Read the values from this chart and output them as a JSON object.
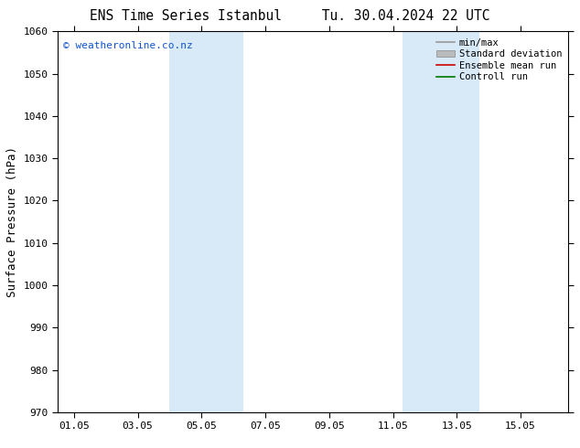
{
  "title": "ENS Time Series Istanbul     Tu. 30.04.2024 22 UTC",
  "ylabel": "Surface Pressure (hPa)",
  "ylim": [
    970,
    1060
  ],
  "yticks": [
    970,
    980,
    990,
    1000,
    1010,
    1020,
    1030,
    1040,
    1050,
    1060
  ],
  "xtick_labels": [
    "01.05",
    "03.05",
    "05.05",
    "07.05",
    "09.05",
    "11.05",
    "13.05",
    "15.05"
  ],
  "xtick_positions": [
    0,
    2,
    4,
    6,
    8,
    10,
    12,
    14
  ],
  "xlim": [
    -0.5,
    15.5
  ],
  "shaded_bands": [
    {
      "xstart": 3.0,
      "xend": 5.3
    },
    {
      "xstart": 10.3,
      "xend": 12.7
    }
  ],
  "shade_color": "#d8eaf8",
  "watermark": "© weatheronline.co.nz",
  "watermark_color": "#1155cc",
  "legend_items": [
    {
      "label": "min/max",
      "color": "#999999",
      "type": "line"
    },
    {
      "label": "Standard deviation",
      "color": "#bbbbbb",
      "type": "fill"
    },
    {
      "label": "Ensemble mean run",
      "color": "#cc0000",
      "type": "line"
    },
    {
      "label": "Controll run",
      "color": "#007700",
      "type": "line"
    }
  ],
  "background_color": "#ffffff",
  "title_fontsize": 10.5,
  "ylabel_fontsize": 9,
  "tick_fontsize": 8,
  "legend_fontsize": 7.5,
  "watermark_fontsize": 8
}
